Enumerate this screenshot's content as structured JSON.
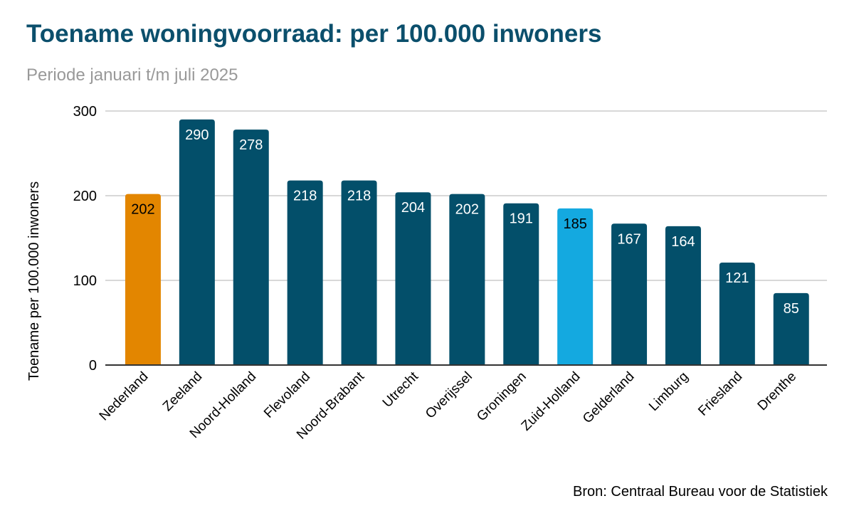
{
  "chart_data": {
    "type": "bar",
    "title": "Toename woningvoorraad: per 100.000 inwoners",
    "subtitle": "Periode januari t/m juli 2025",
    "xlabel": "",
    "ylabel": "Toename per 100.000 inwoners",
    "ylim": [
      0,
      300
    ],
    "yticks": [
      0,
      100,
      200,
      300
    ],
    "grid": true,
    "categories": [
      "Nederland",
      "Zeeland",
      "Noord-Holland",
      "Flevoland",
      "Noord-Brabant",
      "Utrecht",
      "Overijssel",
      "Groningen",
      "Zuid-Holland",
      "Gelderland",
      "Limburg",
      "Friesland",
      "Drenthe"
    ],
    "values": [
      202,
      290,
      278,
      218,
      218,
      204,
      202,
      191,
      185,
      167,
      164,
      121,
      85
    ],
    "data_labels": true,
    "colors": {
      "default": "#034f6a",
      "Nederland": "#e38600",
      "Zuid-Holland": "#14a9e0"
    },
    "source": "Bron: Centraal Bureau voor de Statistiek"
  }
}
